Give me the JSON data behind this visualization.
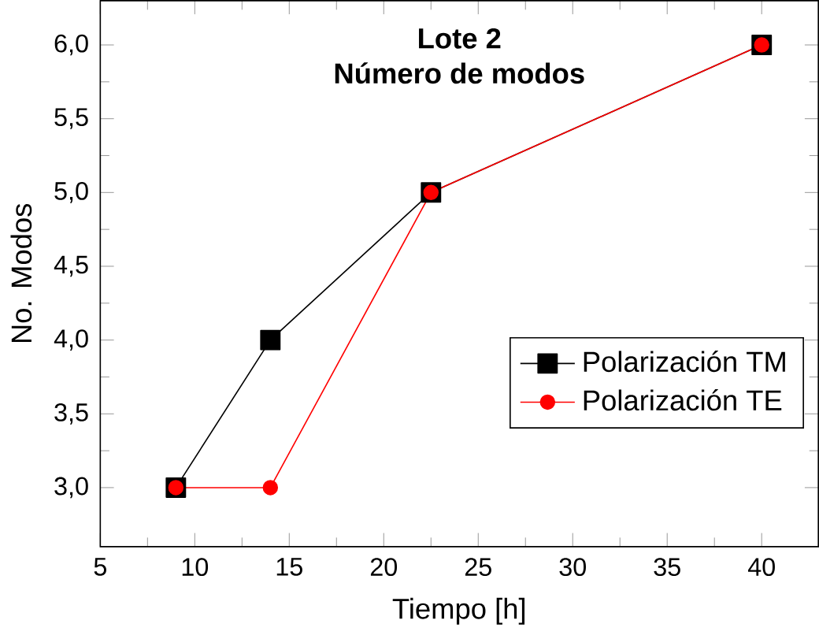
{
  "chart_data": {
    "type": "line",
    "title": "Lote 2",
    "subtitle": "Número de modos",
    "xlabel": "Tiempo [h]",
    "ylabel": "No. Modos",
    "xlim": [
      5,
      43
    ],
    "xticks": [
      5,
      10,
      15,
      20,
      25,
      30,
      35,
      40
    ],
    "ylim": [
      2.6,
      6.3
    ],
    "yticks": [
      {
        "value": 3,
        "label": "3,0"
      },
      {
        "value": 3.5,
        "label": "3,5"
      },
      {
        "value": 4,
        "label": "4,0"
      },
      {
        "value": 4.5,
        "label": "4,5"
      },
      {
        "value": 5,
        "label": "5,0"
      },
      {
        "value": 5.5,
        "label": "5,5"
      },
      {
        "value": 6,
        "label": "6,0"
      }
    ],
    "legend": "right",
    "grid": false,
    "line_style": "solid",
    "series": [
      {
        "name": "Polarización TM",
        "color": "#000000",
        "marker": "square",
        "x": [
          9,
          14,
          22.5,
          40
        ],
        "values": [
          3,
          4,
          5,
          6
        ]
      },
      {
        "name": "Polarización TE",
        "color": "#ff0000",
        "marker": "circle",
        "x": [
          9,
          14,
          22.5,
          40
        ],
        "values": [
          3,
          3,
          5,
          6
        ]
      }
    ]
  }
}
